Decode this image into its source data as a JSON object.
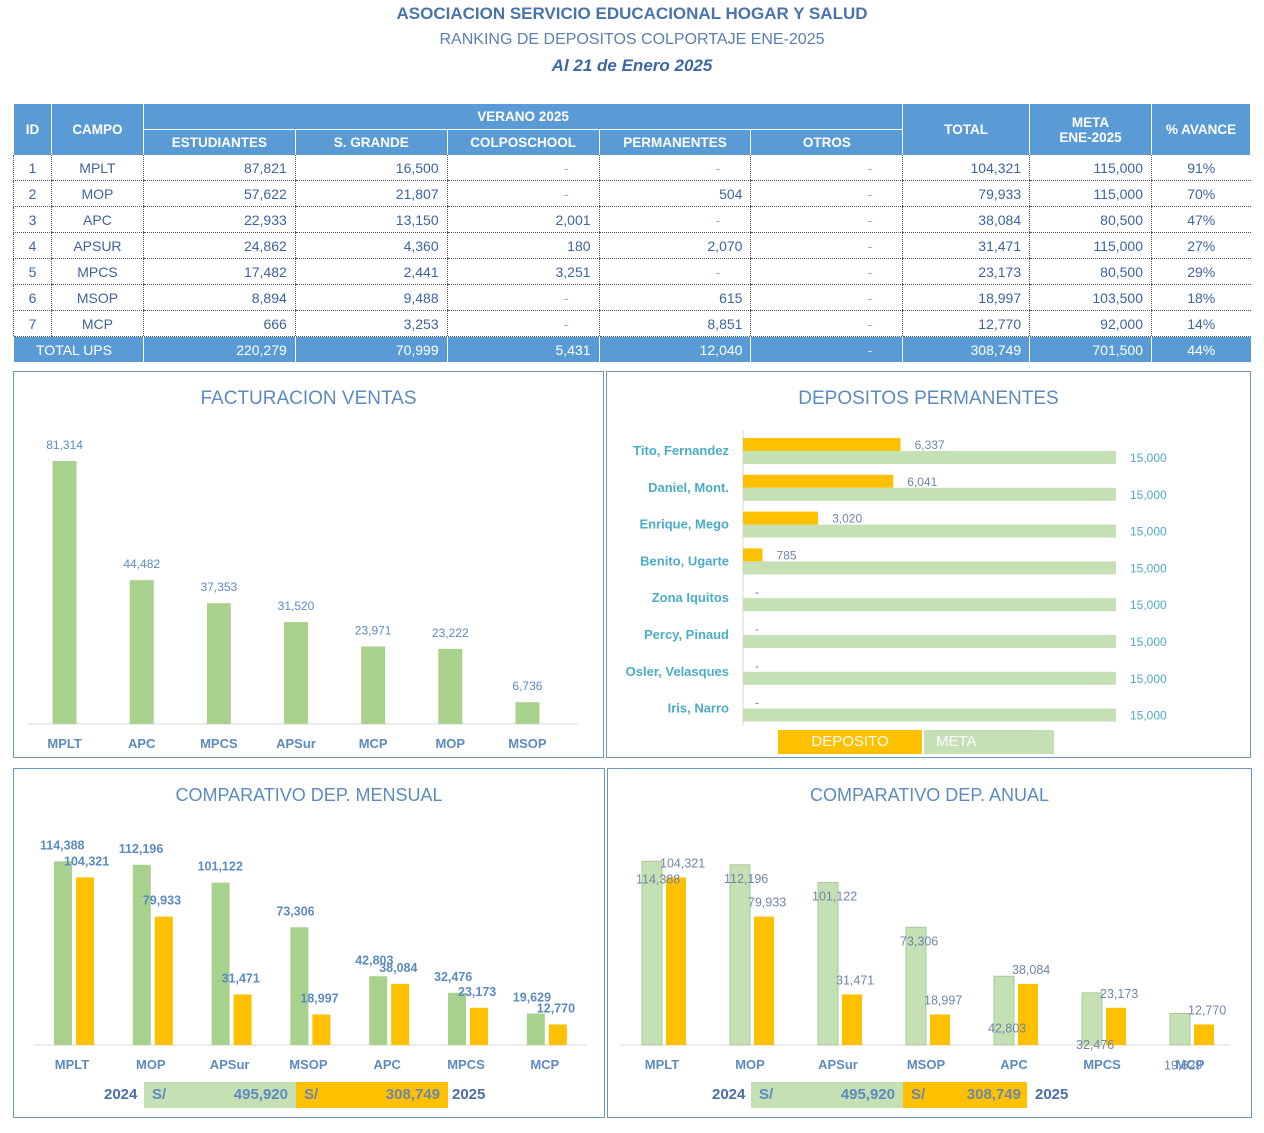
{
  "header": {
    "org": "ASOCIACION SERVICIO EDUCACIONAL HOGAR Y SALUD",
    "subtitle": "RANKING DE DEPOSITOS COLPORTAJE ENE-2025",
    "date": "Al 21 de Enero 2025"
  },
  "table": {
    "headers": {
      "id": "ID",
      "campo": "CAMPO",
      "group": "VERANO 2025",
      "estudiantes": "ESTUDIANTES",
      "sgrande": "S. GRANDE",
      "colposchool": "COLPOSCHOOL",
      "permanentes": "PERMANENTES",
      "otros": "OTROS",
      "total": "TOTAL",
      "meta1": "META",
      "meta2": "ENE-2025",
      "avance": "% AVANCE"
    },
    "rows": [
      {
        "id": "1",
        "campo": "MPLT",
        "estudiantes": "87,821",
        "sgrande": "16,500",
        "colposchool": "-",
        "permanentes": "-",
        "otros": "-",
        "total": "104,321",
        "meta": "115,000",
        "avance": "91%"
      },
      {
        "id": "2",
        "campo": "MOP",
        "estudiantes": "57,622",
        "sgrande": "21,807",
        "colposchool": "-",
        "permanentes": "504",
        "otros": "-",
        "total": "79,933",
        "meta": "115,000",
        "avance": "70%"
      },
      {
        "id": "3",
        "campo": "APC",
        "estudiantes": "22,933",
        "sgrande": "13,150",
        "colposchool": "2,001",
        "permanentes": "-",
        "otros": "-",
        "total": "38,084",
        "meta": "80,500",
        "avance": "47%"
      },
      {
        "id": "4",
        "campo": "APSUR",
        "estudiantes": "24,862",
        "sgrande": "4,360",
        "colposchool": "180",
        "permanentes": "2,070",
        "otros": "-",
        "total": "31,471",
        "meta": "115,000",
        "avance": "27%"
      },
      {
        "id": "5",
        "campo": "MPCS",
        "estudiantes": "17,482",
        "sgrande": "2,441",
        "colposchool": "3,251",
        "permanentes": "-",
        "otros": "-",
        "total": "23,173",
        "meta": "80,500",
        "avance": "29%"
      },
      {
        "id": "6",
        "campo": "MSOP",
        "estudiantes": "8,894",
        "sgrande": "9,488",
        "colposchool": "-",
        "permanentes": "615",
        "otros": "-",
        "total": "18,997",
        "meta": "103,500",
        "avance": "18%"
      },
      {
        "id": "7",
        "campo": "MCP",
        "estudiantes": "666",
        "sgrande": "3,253",
        "colposchool": "-",
        "permanentes": "8,851",
        "otros": "-",
        "total": "12,770",
        "meta": "92,000",
        "avance": "14%"
      }
    ],
    "total_row": {
      "label": "TOTAL UPS",
      "estudiantes": "220,279",
      "sgrande": "70,999",
      "colposchool": "5,431",
      "permanentes": "12,040",
      "otros": "-",
      "total": "308,749",
      "meta": "701,500",
      "avance": "44%"
    }
  },
  "colors": {
    "header_blue": "#5b9bd5",
    "green": "#a9d18e",
    "light_green": "#c5e0b4",
    "gold": "#ffc000",
    "label_blue": "#5b8bc0",
    "teal": "#4bacc6"
  },
  "chart_data": [
    {
      "type": "bar",
      "title": "FACTURACION  VENTAS",
      "categories": [
        "MPLT",
        "APC",
        "MPCS",
        "APSur",
        "MCP",
        "MOP",
        "MSOP"
      ],
      "values": [
        81314,
        44482,
        37353,
        31520,
        23971,
        23222,
        6736
      ],
      "labels": [
        "81,314",
        "44,482",
        "37,353",
        "31,520",
        "23,971",
        "23,222",
        "6,736"
      ],
      "xlabel": "",
      "ylabel": "",
      "ylim": [
        0,
        90000
      ],
      "grid": false
    },
    {
      "type": "bar",
      "orientation": "horizontal",
      "title": "DEPOSITOS PERMANENTES",
      "categories": [
        "Tito, Fernandez",
        "Daniel, Mont.",
        "Enrique, Mego",
        "Benito, Ugarte",
        "Zona Iquitos",
        "Percy, Pinaud",
        "Osler, Velasques",
        "Iris, Narro"
      ],
      "series": [
        {
          "name": "DEPOSITO",
          "values": [
            6337,
            6041,
            3020,
            785,
            0,
            0,
            0,
            0
          ],
          "labels": [
            "6,337",
            "6,041",
            "3,020",
            "785",
            "-",
            "-",
            "-",
            "-"
          ]
        },
        {
          "name": "META",
          "values": [
            15000,
            15000,
            15000,
            15000,
            15000,
            15000,
            15000,
            15000
          ],
          "labels": [
            "15,000",
            "15,000",
            "15,000",
            "15,000",
            "15,000",
            "15,000",
            "15,000",
            "15,000"
          ]
        }
      ],
      "xlim": [
        0,
        15000
      ],
      "legend": "bottom",
      "grid": false
    },
    {
      "type": "bar",
      "title": "COMPARATIVO DEP. MENSUAL",
      "categories": [
        "MPLT",
        "MOP",
        "APSur",
        "MSOP",
        "APC",
        "MPCS",
        "MCP"
      ],
      "series": [
        {
          "name": "2024",
          "values": [
            114388,
            112196,
            101122,
            73306,
            42803,
            32476,
            19629
          ],
          "labels": [
            "114,388",
            "112,196",
            "101,122",
            "73,306",
            "42,803",
            "32,476",
            "19,629"
          ]
        },
        {
          "name": "2025",
          "values": [
            104321,
            79933,
            31471,
            18997,
            38084,
            23173,
            12770
          ],
          "labels": [
            "104,321",
            "79,933",
            "31,471",
            "18,997",
            "38,084",
            "23,173",
            "12,770"
          ]
        }
      ],
      "ylim": [
        0,
        130000
      ],
      "grid": false,
      "totals": {
        "year_a": "2024",
        "currency_a": "S/",
        "value_a": "495,920",
        "year_b": "2025",
        "currency_b": "S/",
        "value_b": "308,749"
      }
    },
    {
      "type": "bar",
      "title": "COMPARATIVO DEP. ANUAL",
      "categories": [
        "MPLT",
        "MOP",
        "APSur",
        "MSOP",
        "APC",
        "MPCS",
        "MCP"
      ],
      "series": [
        {
          "name": "2024",
          "values": [
            114388,
            112196,
            101122,
            73306,
            42803,
            32476,
            19629
          ],
          "labels": [
            "114,388",
            "112,196",
            "101,122",
            "73,306",
            "42,803",
            "32,476",
            "19,629"
          ]
        },
        {
          "name": "2025",
          "values": [
            104321,
            79933,
            31471,
            18997,
            38084,
            23173,
            12770
          ],
          "labels": [
            "104,321",
            "79,933",
            "31,471",
            "18,997",
            "38,084",
            "23,173",
            "12,770"
          ]
        }
      ],
      "ylim": [
        0,
        130000
      ],
      "grid": false,
      "totals": {
        "year_a": "2024",
        "currency_a": "S/",
        "value_a": "495,920",
        "year_b": "2025",
        "currency_b": "S/",
        "value_b": "308,749"
      }
    }
  ]
}
